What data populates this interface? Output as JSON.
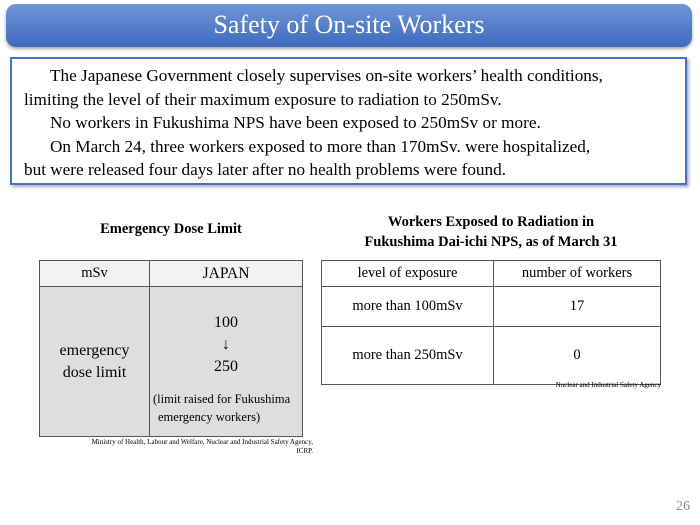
{
  "title": "Safety of On-site Workers",
  "intro": [
    "The Japanese Government closely supervises on-site workers’ health conditions,",
    "limiting the level of their maximum exposure to radiation to 250mSv.",
    "No workers in Fukushima NPS have been exposed to 250mSv or more.",
    "On March 24, three workers exposed to more than 170mSv. were hospitalized,",
    "but were released four days later after no health problems were found."
  ],
  "left": {
    "heading": "Emergency Dose Limit",
    "col1": "mSv",
    "col2": "JAPAN",
    "row_label_1": "emergency",
    "row_label_2": "dose limit",
    "value_from": "100",
    "arrow": "↓",
    "value_to": "250",
    "note_1": "(limit raised for Fukushima",
    "note_2": "emergency workers)",
    "source_1": "Ministry of Health, Labour and Welfare, Nuclear and Industrial Safety Agency,",
    "source_2": "ICRP."
  },
  "right": {
    "heading_1": "Workers Exposed to Radiation in",
    "heading_2": "Fukushima Dai-ichi NPS, as of March 31",
    "col1": "level of exposure",
    "col2": "number of workers",
    "rows": [
      {
        "level": "more than 100mSv",
        "count": "17"
      },
      {
        "level": "more than 250mSv",
        "count": "0"
      }
    ],
    "source": "Nuclear and Industrial Safety Agency"
  },
  "page_number": "26"
}
